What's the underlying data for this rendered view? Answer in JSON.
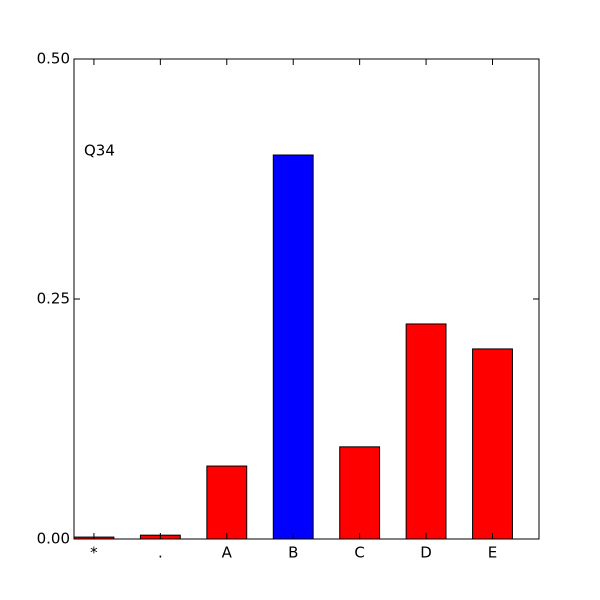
{
  "chart_data": {
    "type": "bar",
    "annotation": "Q34",
    "categories": [
      "*",
      ".",
      "A",
      "B",
      "C",
      "D",
      "E"
    ],
    "values": [
      0.002,
      0.004,
      0.076,
      0.4,
      0.096,
      0.224,
      0.198
    ],
    "colors": [
      "#ff0000",
      "#ff0000",
      "#ff0000",
      "#0000ff",
      "#ff0000",
      "#ff0000",
      "#ff0000"
    ],
    "ylim": [
      0,
      0.5
    ],
    "yticks": [
      {
        "value": 0,
        "label": "0.00"
      },
      {
        "value": 0.25,
        "label": "0.25"
      },
      {
        "value": 0.5,
        "label": "0.50"
      }
    ],
    "grid": false
  }
}
